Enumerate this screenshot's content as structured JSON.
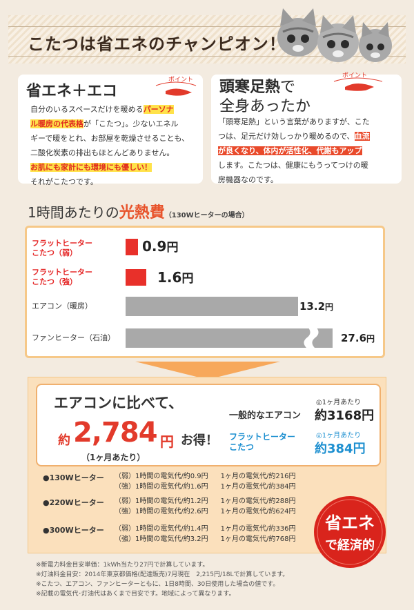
{
  "header": {
    "title": "こたつは省エネのチャンピオン！"
  },
  "left_card": {
    "title": "省エネ＋エコ",
    "point": "ポイント",
    "line1": "自分のいるスペースだけを暖める",
    "hl1a": "パーソナ",
    "hl1b": "ル暖房の代表格",
    "line2": "が「こたつ」。少ないエネル",
    "line3": "ギーで暖をとれ、お部屋を乾燥させることも、",
    "line4": "二酸化炭素の排出もほとんどありません。",
    "hl2": "お肌にも家計にも環境にも優しい！",
    "line5": "それがこたつです。"
  },
  "right_card": {
    "title1": "頭寒足熱",
    "title1_suffix": "で",
    "title2": "全身あったか",
    "point": "ポイント",
    "line1": "「頭寒足熱」という言葉がありますが、こた",
    "line2a": "つは、足元だけ効しっかり暖めるので、",
    "hl1": "血流",
    "hl2": "が良くなり、体内が活性化、代謝もアップ",
    "line3": "します。こたつは、健康にもうってつけの暖",
    "line4": "房機器なのです。"
  },
  "cost_section": {
    "title_a": "1時間あたりの",
    "title_b": "光熱費",
    "note": "（130Wヒーターの場合）"
  },
  "chart_data": {
    "type": "bar",
    "orientation": "horizontal",
    "unit": "円",
    "categories": [
      "フラットヒーター こたつ（弱）",
      "フラットヒーター こたつ（強）",
      "エアコン（暖房）",
      "ファンヒーター（石油）"
    ],
    "values": [
      0.9,
      1.6,
      13.2,
      27.6
    ],
    "value_labels": [
      "0.9",
      "1.6",
      "13.2",
      "27.6"
    ],
    "axis_break_on_last": true,
    "colors": [
      "#e8302a",
      "#e8302a",
      "#a9a9a9",
      "#a9a9a9"
    ]
  },
  "chart_labels": {
    "c1a": "フラットヒーター",
    "c1b": "こたつ（弱）",
    "c2a": "フラットヒーター",
    "c2b": "こたつ（強）",
    "c3": "エアコン（暖房）",
    "c4": "ファンヒーター（石油）",
    "yen": "円"
  },
  "comparison": {
    "head": "エアコンに比べて、",
    "yaku": "約",
    "amount": "2,784",
    "yen": "円",
    "otoku": "お得！",
    "per": "（1ヶ月あたり）",
    "ac_label": "一般的なエアコン",
    "per_month_small": "◎1ヶ月あたり",
    "ac_value": "約3168円",
    "fh_label1": "フラットヒーター",
    "fh_label2": "こたつ",
    "fh_value": "約384円"
  },
  "rows": [
    {
      "heater": "●130Wヒーター",
      "weak": "（弱）1時間の電気代/約0.9円",
      "weak_m": "1ヶ月の電気代/約216円",
      "strong": "（強）1時間の電気代/約1.6円",
      "strong_m": "1ヶ月の電気代/約384円"
    },
    {
      "heater": "●220Wヒーター",
      "weak": "（弱）1時間の電気代/約1.2円",
      "weak_m": "1ヶ月の電気代/約288円",
      "strong": "（強）1時間の電気代/約2.6円",
      "strong_m": "1ヶ月の電気代/約624円"
    },
    {
      "heater": "●300Wヒーター",
      "weak": "（弱）1時間の電気代/約1.4円",
      "weak_m": "1ヶ月の電気代/約336円",
      "strong": "（強）1時間の電気代/約3.2円",
      "strong_m": "1ヶ月の電気代/約768円"
    }
  ],
  "badge": {
    "line1": "省エネ",
    "line2": "で経済的"
  },
  "footnotes": [
    "※新電力料金目安単価：1kWh当たり27円で計算しています。",
    "※灯油料金目安：2014年東京都価格(配達販売)7月現在　2,215円/18Lで計算しています。",
    "※こたつ、エアコン、ファンヒーターともに、1日8時間、30日使用した場合の値です。",
    "※記載の電気代･灯油代はあくまで目安です。地域によって異なります。"
  ]
}
